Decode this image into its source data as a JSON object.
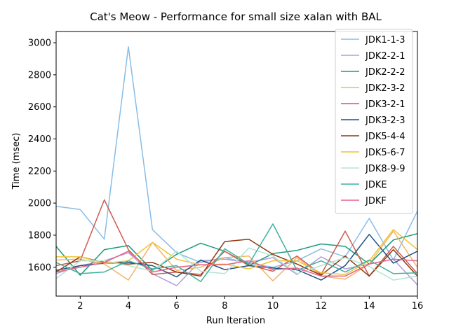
{
  "chart_data": {
    "type": "line",
    "title": "Cat's Meow - Performance for small size xalan with BAL",
    "xlabel": "Run Iteration",
    "ylabel": "Time (msec)",
    "xlim": [
      1,
      16
    ],
    "ylim": [
      1420,
      3070
    ],
    "xticks": [
      2,
      4,
      6,
      8,
      10,
      12,
      14,
      16
    ],
    "yticks": [
      1600,
      1800,
      2000,
      2200,
      2400,
      2600,
      2800,
      3000
    ],
    "legend_position": "top-right",
    "grid": false,
    "x": [
      1,
      2,
      3,
      4,
      5,
      6,
      7,
      8,
      9,
      10,
      11,
      12,
      13,
      14,
      15,
      16
    ],
    "series": [
      {
        "name": "JDK1-1-3",
        "color": "#88bde6",
        "values": [
          1980,
          1960,
          1775,
          2975,
          1835,
          1690,
          1630,
          1660,
          1625,
          1600,
          1640,
          1715,
          1665,
          1905,
          1645,
          1950
        ]
      },
      {
        "name": "JDK2-2-1",
        "color": "#b39ddb",
        "values": [
          1560,
          1610,
          1640,
          1690,
          1560,
          1485,
          1640,
          1650,
          1630,
          1660,
          1555,
          1665,
          1590,
          1620,
          1650,
          1490
        ]
      },
      {
        "name": "JDK2-2-2",
        "color": "#1a9a7a",
        "values": [
          1730,
          1550,
          1710,
          1735,
          1580,
          1680,
          1750,
          1700,
          1610,
          1685,
          1705,
          1745,
          1730,
          1620,
          1770,
          1810
        ]
      },
      {
        "name": "JDK2-3-2",
        "color": "#f5b36a",
        "values": [
          1645,
          1650,
          1620,
          1520,
          1755,
          1580,
          1600,
          1660,
          1670,
          1515,
          1660,
          1545,
          1525,
          1620,
          1825,
          1600
        ]
      },
      {
        "name": "JDK3-2-1",
        "color": "#cd5c50",
        "values": [
          1610,
          1640,
          2020,
          1710,
          1555,
          1570,
          1555,
          1700,
          1615,
          1575,
          1670,
          1555,
          1825,
          1545,
          1730,
          1560
        ]
      },
      {
        "name": "JDK3-2-3",
        "color": "#1f4f80",
        "values": [
          1580,
          1610,
          1625,
          1630,
          1610,
          1540,
          1645,
          1585,
          1610,
          1595,
          1585,
          1520,
          1610,
          1805,
          1625,
          1700
        ]
      },
      {
        "name": "JDK5-4-4",
        "color": "#8b3a10",
        "values": [
          1570,
          1665,
          1630,
          1620,
          1630,
          1570,
          1545,
          1760,
          1775,
          1680,
          1620,
          1550,
          1670,
          1545,
          1710,
          1545
        ]
      },
      {
        "name": "JDK5-6-7",
        "color": "#f2c22e",
        "values": [
          1665,
          1665,
          1625,
          1640,
          1755,
          1650,
          1615,
          1620,
          1590,
          1640,
          1640,
          1565,
          1555,
          1640,
          1835,
          1710
        ]
      },
      {
        "name": "JDK8-9-9",
        "color": "#b3e5cf",
        "values": [
          1530,
          1640,
          1640,
          1610,
          1575,
          1700,
          1575,
          1560,
          1720,
          1670,
          1560,
          1610,
          1660,
          1605,
          1520,
          1545
        ]
      },
      {
        "name": "JDKE",
        "color": "#40b0a0",
        "values": [
          1630,
          1560,
          1570,
          1640,
          1590,
          1610,
          1510,
          1715,
          1620,
          1870,
          1580,
          1640,
          1570,
          1645,
          1560,
          1565
        ]
      },
      {
        "name": "JDKF",
        "color": "#e8608a",
        "values": [
          1570,
          1600,
          1630,
          1700,
          1570,
          1600,
          1615,
          1615,
          1640,
          1585,
          1595,
          1545,
          1545,
          1620,
          1650,
          1640
        ]
      }
    ]
  }
}
